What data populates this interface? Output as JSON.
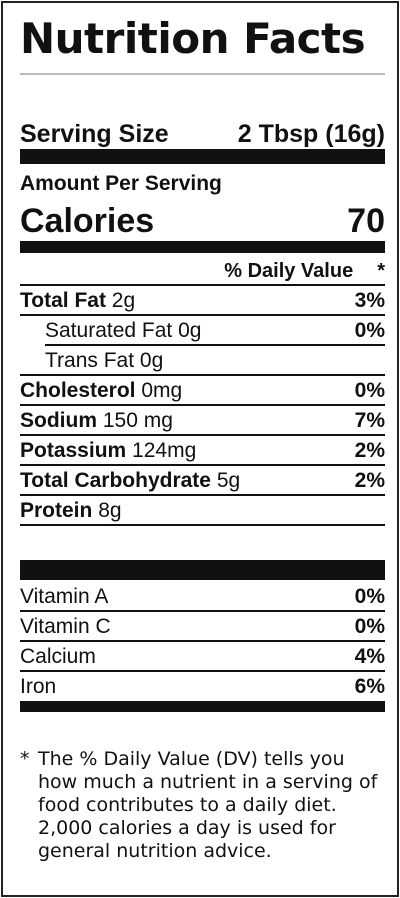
{
  "title": "Nutrition Facts",
  "serving": {
    "label": "Serving Size",
    "value": "2 Tbsp (16g)"
  },
  "amount_per_serving": "Amount Per Serving",
  "calories": {
    "label": "Calories",
    "value": "70"
  },
  "dv_header": {
    "label": "% Daily Value",
    "star": "*"
  },
  "nutrients": [
    {
      "name": "Total Fat",
      "amount": "2g",
      "dv": "3%"
    },
    {
      "name": "Saturated Fat",
      "amount": "0g",
      "dv": "0%"
    },
    {
      "name": "Trans Fat",
      "amount": "0g",
      "dv": ""
    },
    {
      "name": "Cholesterol",
      "amount": "0mg",
      "dv": "0%"
    },
    {
      "name": "Sodium",
      "amount": "150 mg",
      "dv": "7%"
    },
    {
      "name": "Potassium",
      "amount": "124mg",
      "dv": "2%"
    },
    {
      "name": "Total Carbohydrate",
      "amount": "5g",
      "dv": "2%"
    },
    {
      "name": "Protein",
      "amount": "8g",
      "dv": ""
    }
  ],
  "vitamins": [
    {
      "name": "Vitamin A",
      "dv": "0%"
    },
    {
      "name": "Vitamin C",
      "dv": "0%"
    },
    {
      "name": "Calcium",
      "dv": "4%"
    },
    {
      "name": "Iron",
      "dv": "6%"
    }
  ],
  "footnote": {
    "asterisk": "*",
    "text": "The % Daily Value (DV) tells you how much a nutrient in a serving of food contributes to a daily diet. 2,000 calories a day is used for general nutrition advice."
  }
}
